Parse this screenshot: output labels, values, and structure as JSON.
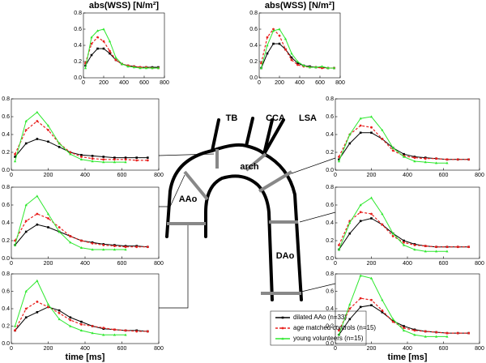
{
  "diagram": {
    "labels": [
      "TB",
      "CCA",
      "LSA",
      "arch",
      "AAo",
      "DAo"
    ]
  },
  "chart_data": [
    {
      "type": "line",
      "title": "abs(WSS) [N/m²]",
      "x": [
        20,
        80,
        140,
        200,
        260,
        320,
        380,
        440,
        500,
        560,
        620,
        680,
        740
      ],
      "xlim": [
        0,
        800
      ],
      "xticks": [
        0,
        200,
        400,
        600,
        800
      ],
      "ylim": [
        0,
        0.8
      ],
      "yticks": [
        {
          "value": 0,
          "label": "0.0"
        },
        0.2,
        0.4,
        0.6,
        0.8
      ],
      "series": [
        {
          "name": "dilated AAo (n=33)",
          "color": "#000000",
          "values": [
            0.15,
            0.28,
            0.36,
            0.36,
            0.3,
            0.22,
            0.17,
            0.15,
            0.14,
            0.13,
            0.13,
            0.13,
            0.13
          ]
        },
        {
          "name": "age matched controls (n=15)",
          "color": "#e8201e",
          "values": [
            0.18,
            0.42,
            0.5,
            0.45,
            0.33,
            0.22,
            0.17,
            0.15,
            0.14,
            0.13,
            0.13,
            0.12,
            0.12
          ]
        },
        {
          "name": "young volunteers (n=15)",
          "color": "#2ee82e",
          "values": [
            0.12,
            0.5,
            0.58,
            0.6,
            0.45,
            0.25,
            0.17,
            0.14,
            0.13,
            0.12,
            0.12,
            0.12,
            0.12
          ]
        }
      ]
    },
    {
      "type": "line",
      "title": "abs(WSS) [N/m²]",
      "x": [
        20,
        80,
        140,
        200,
        260,
        320,
        380,
        440,
        500,
        560,
        620,
        680,
        740
      ],
      "xlim": [
        0,
        800
      ],
      "xticks": [
        0,
        200,
        400,
        600,
        800
      ],
      "ylim": [
        0,
        0.8
      ],
      "yticks": [
        {
          "value": 0,
          "label": "0.0"
        },
        0.2,
        0.4,
        0.6,
        0.8
      ],
      "series": [
        {
          "color": "#000000",
          "values": [
            0.12,
            0.3,
            0.42,
            0.42,
            0.35,
            0.25,
            0.18,
            0.15,
            0.14,
            0.13,
            0.13,
            0.12,
            0.12
          ]
        },
        {
          "color": "#e8201e",
          "values": [
            0.18,
            0.5,
            0.6,
            0.52,
            0.35,
            0.22,
            0.16,
            0.14,
            0.13,
            0.13,
            0.12,
            0.12,
            0.12
          ]
        },
        {
          "color": "#2ee82e",
          "values": [
            0.12,
            0.4,
            0.58,
            0.6,
            0.48,
            0.3,
            0.2,
            0.15,
            0.13,
            0.13,
            0.14,
            0.12,
            0.12
          ]
        }
      ]
    },
    {
      "type": "line",
      "x": [
        20,
        80,
        140,
        200,
        260,
        320,
        380,
        440,
        500,
        560,
        620,
        680,
        740
      ],
      "xlim": [
        0,
        800
      ],
      "xticks": [
        0,
        200,
        400,
        600,
        800
      ],
      "ylim": [
        0,
        0.8
      ],
      "yticks": [
        {
          "value": 0,
          "label": "0.0"
        },
        0.2,
        0.4,
        0.6,
        0.8
      ],
      "series": [
        {
          "color": "#000000",
          "values": [
            0.15,
            0.3,
            0.35,
            0.32,
            0.26,
            0.2,
            0.17,
            0.16,
            0.15,
            0.14,
            0.14,
            0.14,
            0.14
          ]
        },
        {
          "color": "#e8201e",
          "values": [
            0.18,
            0.45,
            0.55,
            0.45,
            0.3,
            0.2,
            0.15,
            0.13,
            0.12,
            0.12,
            0.12,
            0.11,
            0.11
          ]
        },
        {
          "color": "#2ee82e",
          "values": [
            0.1,
            0.55,
            0.65,
            0.5,
            0.3,
            0.18,
            0.12,
            0.1,
            0.09,
            0.09,
            0.09,
            null,
            null
          ]
        }
      ]
    },
    {
      "type": "line",
      "x": [
        20,
        80,
        140,
        200,
        260,
        320,
        380,
        440,
        500,
        560,
        620,
        680,
        740
      ],
      "xlim": [
        0,
        800
      ],
      "xticks": [
        0,
        200,
        400,
        600,
        800
      ],
      "ylim": [
        0,
        0.8
      ],
      "yticks": [
        {
          "value": 0,
          "label": "0.0"
        },
        0.2,
        0.4,
        0.6,
        0.8
      ],
      "series": [
        {
          "color": "#000000",
          "values": [
            0.12,
            0.3,
            0.42,
            0.42,
            0.35,
            0.25,
            0.18,
            0.15,
            0.14,
            0.13,
            0.12,
            0.12,
            0.12
          ]
        },
        {
          "color": "#e8201e",
          "values": [
            0.15,
            0.4,
            0.5,
            0.48,
            0.35,
            0.22,
            0.16,
            0.14,
            0.13,
            0.13,
            0.12,
            0.12,
            0.12
          ]
        },
        {
          "color": "#2ee82e",
          "values": [
            0.1,
            0.4,
            0.58,
            0.6,
            0.45,
            0.25,
            0.15,
            0.1,
            0.09,
            0.08,
            0.08,
            null,
            null
          ]
        }
      ]
    },
    {
      "type": "line",
      "x": [
        20,
        80,
        140,
        200,
        260,
        320,
        380,
        440,
        500,
        560,
        620,
        680,
        740
      ],
      "xlim": [
        0,
        800
      ],
      "xticks": [
        0,
        200,
        400,
        600,
        800
      ],
      "ylim": [
        0,
        0.8
      ],
      "yticks": [
        {
          "value": 0,
          "label": "0.0"
        },
        0.2,
        0.4,
        0.6,
        0.8
      ],
      "series": [
        {
          "color": "#000000",
          "values": [
            0.15,
            0.3,
            0.38,
            0.35,
            0.3,
            0.25,
            0.2,
            0.18,
            0.16,
            0.15,
            0.14,
            0.14,
            0.13
          ]
        },
        {
          "color": "#e8201e",
          "values": [
            0.2,
            0.42,
            0.5,
            0.45,
            0.35,
            0.25,
            0.2,
            0.17,
            0.15,
            0.14,
            0.13,
            0.13,
            0.13
          ]
        },
        {
          "color": "#2ee82e",
          "values": [
            0.15,
            0.6,
            0.7,
            0.5,
            0.3,
            0.18,
            0.12,
            0.1,
            0.1,
            0.1,
            0.1,
            null,
            null
          ]
        }
      ]
    },
    {
      "type": "line",
      "x": [
        20,
        80,
        140,
        200,
        260,
        320,
        380,
        440,
        500,
        560,
        620,
        680,
        740
      ],
      "xlim": [
        0,
        800
      ],
      "xticks": [
        0,
        200,
        400,
        600,
        800
      ],
      "ylim": [
        0,
        0.8
      ],
      "yticks": [
        {
          "value": 0,
          "label": "0.0"
        },
        0.2,
        0.4,
        0.6,
        0.8
      ],
      "series": [
        {
          "color": "#000000",
          "values": [
            0.1,
            0.28,
            0.42,
            0.45,
            0.38,
            0.28,
            0.2,
            0.16,
            0.14,
            0.13,
            0.13,
            0.13,
            0.13
          ]
        },
        {
          "color": "#e8201e",
          "values": [
            0.15,
            0.42,
            0.52,
            0.5,
            0.38,
            0.25,
            0.18,
            0.15,
            0.14,
            0.13,
            0.13,
            0.13,
            0.13
          ]
        },
        {
          "color": "#2ee82e",
          "values": [
            0.1,
            0.4,
            0.6,
            0.68,
            0.5,
            0.28,
            0.15,
            0.1,
            0.08,
            0.08,
            0.08,
            null,
            null
          ]
        }
      ]
    },
    {
      "type": "line",
      "xlabel": "time [ms]",
      "x": [
        20,
        80,
        140,
        200,
        260,
        320,
        380,
        440,
        500,
        560,
        620,
        680,
        740
      ],
      "xlim": [
        0,
        800
      ],
      "xticks": [
        0,
        200,
        400,
        600,
        800
      ],
      "ylim": [
        0,
        0.8
      ],
      "yticks": [
        {
          "value": 0,
          "label": "0.0"
        },
        0.2,
        0.4,
        0.6,
        0.8
      ],
      "series": [
        {
          "color": "#000000",
          "values": [
            0.15,
            0.3,
            0.36,
            0.42,
            0.38,
            0.3,
            0.25,
            0.2,
            0.17,
            0.16,
            0.15,
            0.15,
            0.14
          ]
        },
        {
          "color": "#e8201e",
          "values": [
            0.15,
            0.4,
            0.48,
            0.42,
            0.35,
            0.27,
            0.22,
            0.2,
            0.18,
            0.16,
            0.15,
            0.14,
            0.14
          ]
        },
        {
          "color": "#2ee82e",
          "values": [
            0.2,
            0.6,
            0.72,
            0.45,
            0.28,
            0.2,
            0.15,
            0.12,
            0.1,
            0.1,
            0.1,
            null,
            null
          ]
        }
      ]
    },
    {
      "type": "line",
      "xlabel": "time [ms]",
      "x": [
        20,
        80,
        140,
        200,
        260,
        320,
        380,
        440,
        500,
        560,
        620,
        680,
        740
      ],
      "xlim": [
        0,
        800
      ],
      "xticks": [
        0,
        200,
        400,
        600,
        800
      ],
      "ylim": [
        0,
        0.8
      ],
      "yticks": [
        {
          "value": 0,
          "label": "0.0"
        },
        0.2,
        0.4,
        0.6,
        0.8
      ],
      "series": [
        {
          "color": "#000000",
          "values": [
            0.1,
            0.28,
            0.42,
            0.44,
            0.36,
            0.26,
            0.2,
            0.16,
            0.14,
            0.13,
            0.12,
            0.12,
            0.12
          ]
        },
        {
          "color": "#e8201e",
          "values": [
            0.15,
            0.4,
            0.52,
            0.5,
            0.38,
            0.25,
            0.18,
            0.15,
            0.14,
            0.13,
            0.12,
            0.12,
            0.12
          ]
        },
        {
          "color": "#2ee82e",
          "values": [
            0.1,
            0.45,
            0.78,
            0.75,
            0.5,
            0.28,
            0.15,
            0.1,
            0.08,
            0.08,
            0.08,
            null,
            null
          ]
        }
      ]
    }
  ]
}
